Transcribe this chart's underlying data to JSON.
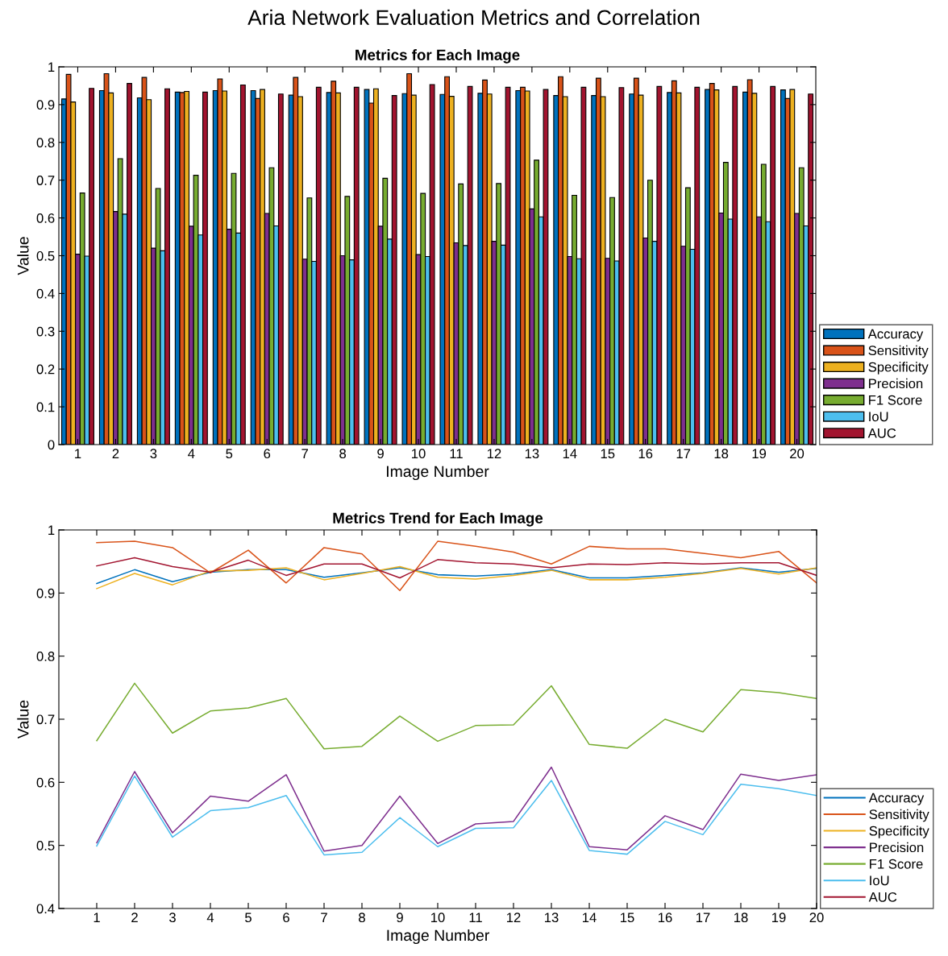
{
  "chart_data": [
    {
      "type": "bar",
      "title": "Aria Network Evaluation Metrics and Correlation",
      "subtitle": "Metrics for Each Image",
      "xlabel": "Image Number",
      "ylabel": "Value",
      "categories": [
        "1",
        "2",
        "3",
        "4",
        "5",
        "6",
        "7",
        "8",
        "9",
        "10",
        "11",
        "12",
        "13",
        "14",
        "15",
        "16",
        "17",
        "18",
        "19",
        "20"
      ],
      "ylim": [
        0,
        1
      ],
      "yticks": [
        0,
        0.1,
        0.2,
        0.3,
        0.4,
        0.5,
        0.6,
        0.7,
        0.8,
        0.9,
        1
      ],
      "grid": false,
      "legend": "bottom right",
      "series": [
        {
          "name": "Accuracy",
          "color": "#0072bd",
          "values": [
            0.915,
            0.937,
            0.918,
            0.933,
            0.937,
            0.937,
            0.925,
            0.932,
            0.94,
            0.929,
            0.927,
            0.93,
            0.937,
            0.924,
            0.924,
            0.928,
            0.932,
            0.94,
            0.933,
            0.939
          ]
        },
        {
          "name": "Sensitivity",
          "color": "#d95319",
          "values": [
            0.98,
            0.982,
            0.972,
            0.932,
            0.968,
            0.916,
            0.972,
            0.962,
            0.904,
            0.982,
            0.974,
            0.965,
            0.946,
            0.974,
            0.97,
            0.97,
            0.963,
            0.956,
            0.966,
            0.916
          ]
        },
        {
          "name": "Specificity",
          "color": "#edb120",
          "values": [
            0.907,
            0.931,
            0.913,
            0.935,
            0.936,
            0.94,
            0.921,
            0.931,
            0.942,
            0.925,
            0.922,
            0.928,
            0.936,
            0.921,
            0.921,
            0.925,
            0.931,
            0.939,
            0.93,
            0.94
          ]
        },
        {
          "name": "Precision",
          "color": "#7e2f8e",
          "values": [
            0.504,
            0.617,
            0.52,
            0.578,
            0.57,
            0.612,
            0.491,
            0.5,
            0.578,
            0.503,
            0.534,
            0.538,
            0.624,
            0.498,
            0.493,
            0.547,
            0.525,
            0.613,
            0.603,
            0.612
          ]
        },
        {
          "name": "F1 Score",
          "color": "#77ac30",
          "values": [
            0.666,
            0.757,
            0.678,
            0.713,
            0.718,
            0.733,
            0.653,
            0.657,
            0.705,
            0.665,
            0.69,
            0.691,
            0.753,
            0.66,
            0.654,
            0.7,
            0.68,
            0.747,
            0.742,
            0.733
          ]
        },
        {
          "name": "IoU",
          "color": "#4dbeee",
          "values": [
            0.499,
            0.61,
            0.513,
            0.555,
            0.56,
            0.579,
            0.485,
            0.489,
            0.544,
            0.498,
            0.527,
            0.528,
            0.603,
            0.492,
            0.486,
            0.538,
            0.517,
            0.597,
            0.59,
            0.579
          ]
        },
        {
          "name": "AUC",
          "color": "#a2142f",
          "values": [
            0.943,
            0.956,
            0.942,
            0.933,
            0.952,
            0.928,
            0.946,
            0.946,
            0.924,
            0.953,
            0.948,
            0.946,
            0.94,
            0.946,
            0.945,
            0.948,
            0.946,
            0.948,
            0.948,
            0.928
          ]
        }
      ]
    },
    {
      "type": "line",
      "title": "Metrics Trend for Each Image",
      "xlabel": "Image Number",
      "ylabel": "Value",
      "x": [
        1,
        2,
        3,
        4,
        5,
        6,
        7,
        8,
        9,
        10,
        11,
        12,
        13,
        14,
        15,
        16,
        17,
        18,
        19,
        20
      ],
      "xlim": [
        0,
        20
      ],
      "xticks": [
        1,
        2,
        3,
        4,
        5,
        6,
        7,
        8,
        9,
        10,
        11,
        12,
        13,
        14,
        15,
        16,
        17,
        18,
        19,
        20
      ],
      "ylim": [
        0.4,
        1
      ],
      "yticks": [
        0.4,
        0.5,
        0.6,
        0.7,
        0.8,
        0.9,
        1
      ],
      "grid": false,
      "legend": "bottom right",
      "marker": "none",
      "line_style": "solid",
      "series": [
        {
          "name": "Accuracy",
          "color": "#0072bd",
          "values": [
            0.915,
            0.937,
            0.918,
            0.933,
            0.937,
            0.937,
            0.925,
            0.932,
            0.94,
            0.929,
            0.927,
            0.93,
            0.937,
            0.924,
            0.924,
            0.928,
            0.932,
            0.94,
            0.933,
            0.939
          ]
        },
        {
          "name": "Sensitivity",
          "color": "#d95319",
          "values": [
            0.98,
            0.982,
            0.972,
            0.932,
            0.968,
            0.916,
            0.972,
            0.962,
            0.904,
            0.982,
            0.974,
            0.965,
            0.946,
            0.974,
            0.97,
            0.97,
            0.963,
            0.956,
            0.966,
            0.916
          ]
        },
        {
          "name": "Specificity",
          "color": "#edb120",
          "values": [
            0.907,
            0.931,
            0.913,
            0.935,
            0.936,
            0.94,
            0.921,
            0.931,
            0.942,
            0.925,
            0.922,
            0.928,
            0.936,
            0.921,
            0.921,
            0.925,
            0.931,
            0.939,
            0.93,
            0.94
          ]
        },
        {
          "name": "Precision",
          "color": "#7e2f8e",
          "values": [
            0.504,
            0.617,
            0.52,
            0.578,
            0.57,
            0.612,
            0.491,
            0.5,
            0.578,
            0.503,
            0.534,
            0.538,
            0.624,
            0.498,
            0.493,
            0.547,
            0.525,
            0.613,
            0.603,
            0.612
          ]
        },
        {
          "name": "F1 Score",
          "color": "#77ac30",
          "values": [
            0.666,
            0.757,
            0.678,
            0.713,
            0.718,
            0.733,
            0.653,
            0.657,
            0.705,
            0.665,
            0.69,
            0.691,
            0.753,
            0.66,
            0.654,
            0.7,
            0.68,
            0.747,
            0.742,
            0.733
          ]
        },
        {
          "name": "IoU",
          "color": "#4dbeee",
          "values": [
            0.499,
            0.61,
            0.513,
            0.555,
            0.56,
            0.579,
            0.485,
            0.489,
            0.544,
            0.498,
            0.527,
            0.528,
            0.603,
            0.492,
            0.486,
            0.538,
            0.517,
            0.597,
            0.59,
            0.579
          ]
        },
        {
          "name": "AUC",
          "color": "#a2142f",
          "values": [
            0.943,
            0.956,
            0.942,
            0.933,
            0.952,
            0.928,
            0.946,
            0.946,
            0.924,
            0.953,
            0.948,
            0.946,
            0.94,
            0.946,
            0.945,
            0.948,
            0.946,
            0.948,
            0.948,
            0.928
          ]
        }
      ]
    }
  ]
}
